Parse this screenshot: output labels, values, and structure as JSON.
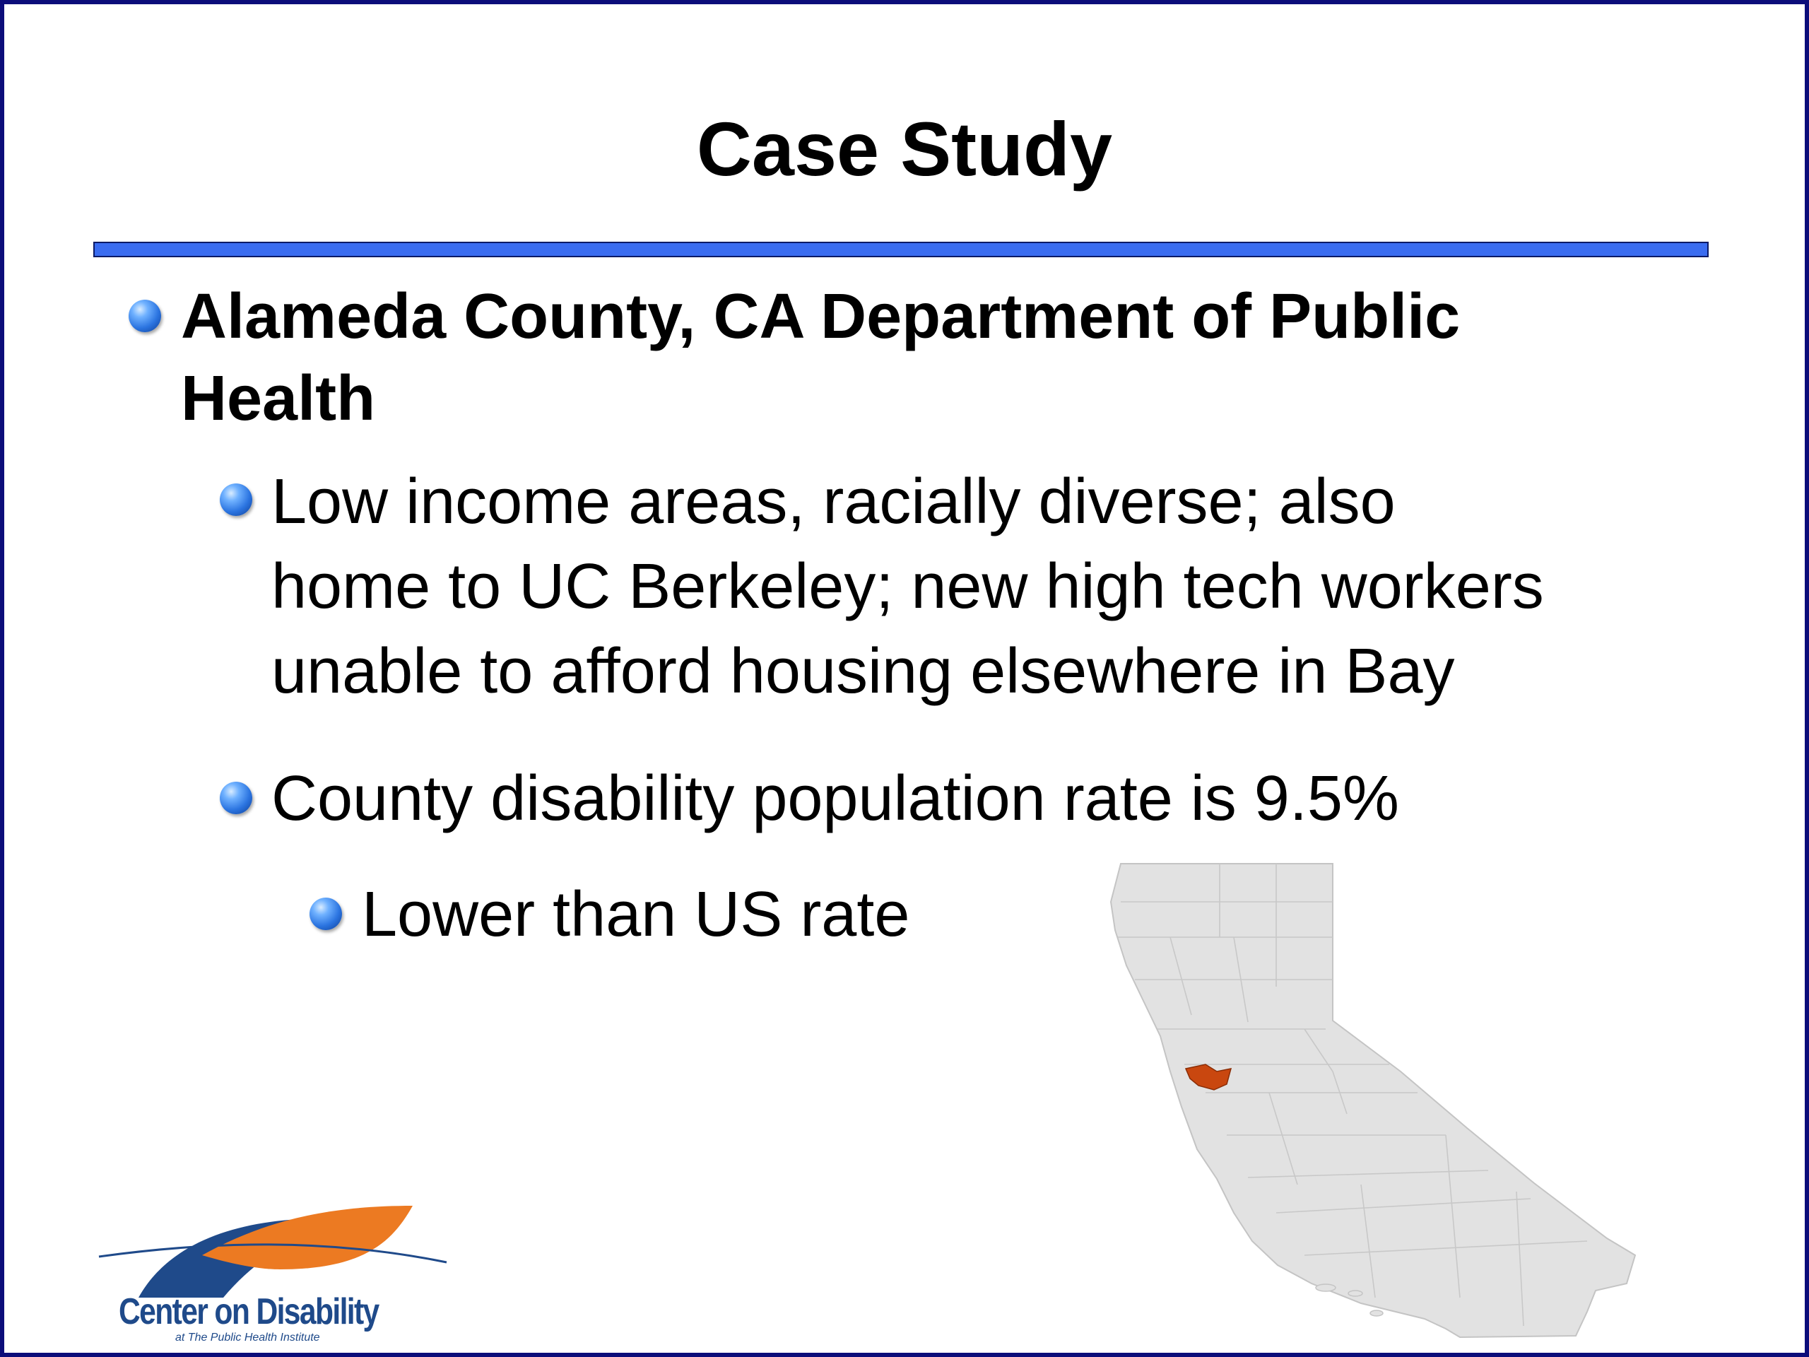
{
  "slide": {
    "title": "Case Study",
    "bullets": [
      {
        "text_line1": "Alameda County, CA Department of Public",
        "text_line2": "Health",
        "sub": [
          {
            "line1": "Low income areas, racially diverse; also",
            "line2": "home to UC Berkeley; new high tech workers",
            "line3": "unable to afford housing elsewhere in Bay"
          },
          {
            "line1": "County disability population rate is 9.5%",
            "sub": [
              {
                "text": "Lower than US rate"
              }
            ]
          }
        ]
      }
    ]
  },
  "logo": {
    "name": "Center on Disability",
    "tagline": "at The Public Health Institute"
  },
  "colors": {
    "frame": "#0c0d7a",
    "rule": "#3a6cf0",
    "highlight_county": "#c9470f",
    "logo_blue": "#1f4a8a",
    "logo_orange": "#ec7a22"
  }
}
